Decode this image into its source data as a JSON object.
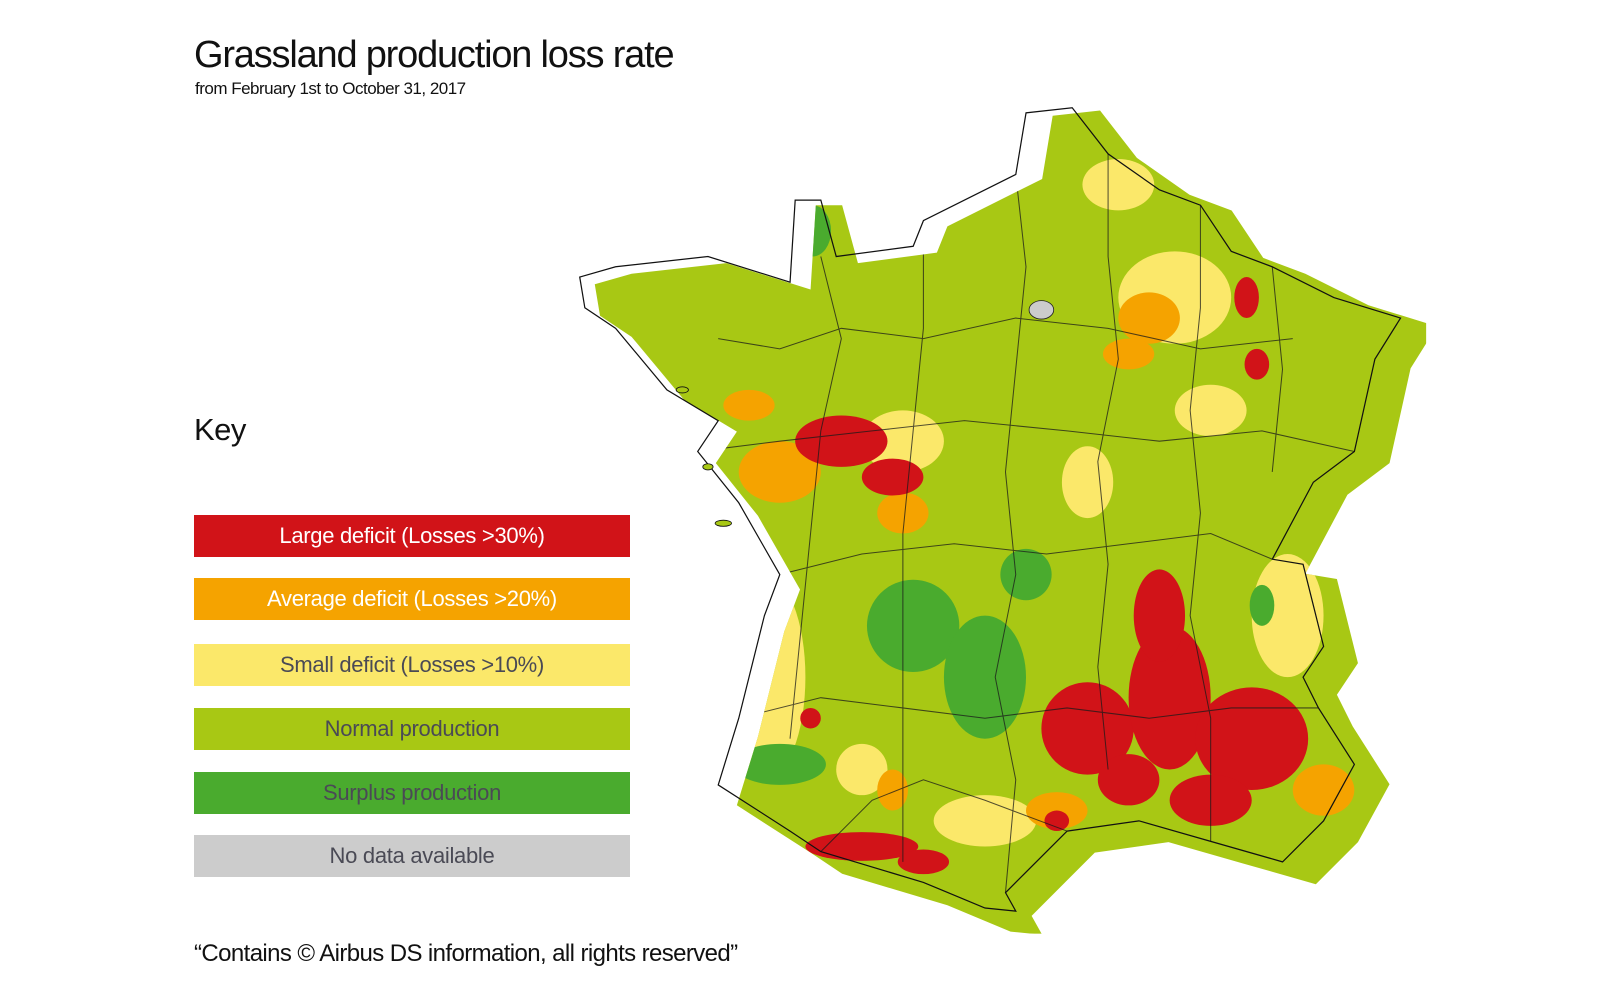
{
  "title": "Grassland production loss rate",
  "subtitle": "from February 1st to October 31, 2017",
  "key_label": "Key",
  "legend": [
    {
      "label": "Large deficit (Losses >30%)",
      "color": "#d11318",
      "text_color": "#ffffff"
    },
    {
      "label": "Average deficit (Losses >20%)",
      "color": "#f5a300",
      "text_color": "#ffffff"
    },
    {
      "label": "Small deficit (Losses >10%)",
      "color": "#fbe86a",
      "text_color": "#4a4a55"
    },
    {
      "label": "Normal production",
      "color": "#a8c814",
      "text_color": "#4a4a55"
    },
    {
      "label": "Surplus production",
      "color": "#4aab2e",
      "text_color": "#4a4a55"
    },
    {
      "label": "No data available",
      "color": "#cccccc",
      "text_color": "#4a4a55"
    }
  ],
  "footer": "“Contains © Airbus DS information, all rights reserved”"
}
